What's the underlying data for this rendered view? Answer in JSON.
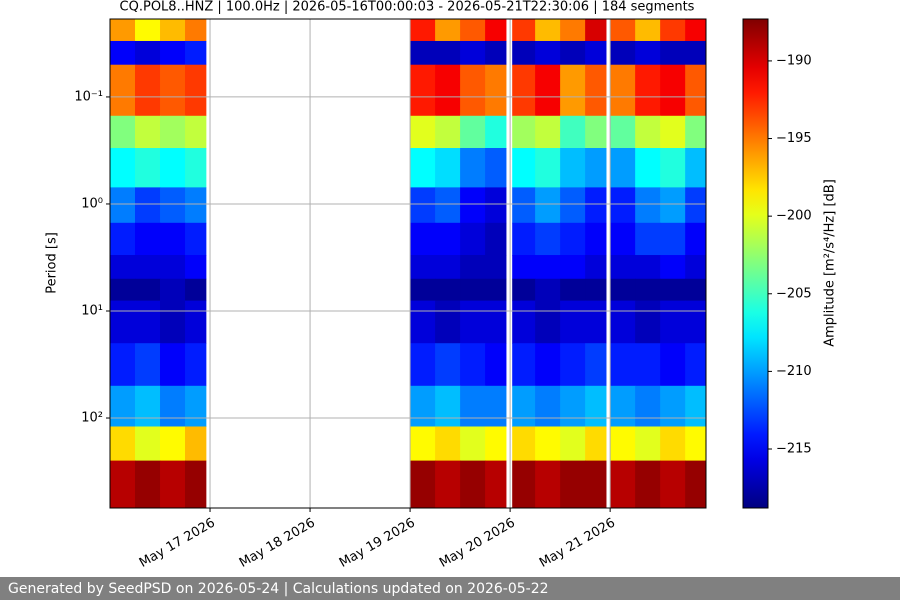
{
  "chart_data": {
    "type": "heatmap",
    "title": "CQ.POL8..HNZ | 100.0Hz | 2026-05-16T00:00:03 - 2026-05-21T22:30:06 | 184 segments",
    "ylabel": "Period [s]",
    "yscale": "log",
    "y_inverted": true,
    "grid": true,
    "xlim": [
      "2026-05-16T00:00",
      "2026-05-21T23:00"
    ],
    "xticks": [
      {
        "value": "2026-05-17T00:00",
        "label": "May 17 2026"
      },
      {
        "value": "2026-05-18T00:00",
        "label": "May 18 2026"
      },
      {
        "value": "2026-05-19T00:00",
        "label": "May 19 2026"
      },
      {
        "value": "2026-05-20T00:00",
        "label": "May 20 2026"
      },
      {
        "value": "2026-05-21T00:00",
        "label": "May 21 2026"
      }
    ],
    "ylim": [
      0.0187,
      693
    ],
    "yticks": [
      {
        "value": 0.1,
        "label": "10⁻¹"
      },
      {
        "value": 1,
        "label": "10⁰"
      },
      {
        "value": 10,
        "label": "10¹"
      },
      {
        "value": 100,
        "label": "10²"
      }
    ],
    "x_edges": [
      "2026-05-16T00:00",
      "2026-05-16T06:00",
      "2026-05-16T12:00",
      "2026-05-16T18:00",
      "2026-05-16T23:00",
      "2026-05-19T00:00",
      "2026-05-19T06:00",
      "2026-05-19T12:00",
      "2026-05-19T18:00",
      "2026-05-19T23:00",
      "2026-05-20T00:30",
      "2026-05-20T06:00",
      "2026-05-20T12:00",
      "2026-05-20T18:00",
      "2026-05-20T23:00",
      "2026-05-21T00:00",
      "2026-05-21T06:00",
      "2026-05-21T12:00",
      "2026-05-21T18:00",
      "2026-05-21T23:00"
    ],
    "y_edges": [
      0.0187,
      0.03,
      0.05,
      0.15,
      0.3,
      0.7,
      1.5,
      3,
      5,
      8,
      20,
      50,
      120,
      250,
      693
    ],
    "z": [
      [
        -196,
        -199,
        -197,
        -195,
        null,
        -192,
        -196,
        -194,
        -191,
        null,
        -193,
        -197,
        -195,
        -190,
        null,
        -194,
        -197,
        -193,
        -191
      ],
      [
        -215,
        -216,
        -215,
        -214,
        null,
        -217,
        -217,
        -216,
        -217,
        null,
        -217,
        -216,
        -217,
        -216,
        null,
        -217,
        -216,
        -217,
        -217
      ],
      [
        -195,
        -193,
        -194,
        -193,
        null,
        -192,
        -191,
        -194,
        -195,
        null,
        -193,
        -191,
        -196,
        -194,
        null,
        -195,
        -192,
        -191,
        -194
      ],
      [
        -203,
        -201,
        -202,
        -201,
        null,
        -200,
        -201,
        -204,
        -206,
        null,
        -202,
        -201,
        -205,
        -203,
        null,
        -204,
        -201,
        -200,
        -203
      ],
      [
        -207,
        -206,
        -207,
        -206,
        null,
        -207,
        -208,
        -211,
        -212,
        null,
        -207,
        -206,
        -209,
        -210,
        null,
        -210,
        -207,
        -206,
        -209
      ],
      [
        -211,
        -213,
        -212,
        -211,
        null,
        -213,
        -212,
        -215,
        -216,
        null,
        -212,
        -210,
        -212,
        -214,
        null,
        -214,
        -211,
        -210,
        -213
      ],
      [
        -214,
        -215,
        -215,
        -214,
        null,
        -215,
        -215,
        -216,
        -217,
        null,
        -214,
        -213,
        -214,
        -215,
        null,
        -215,
        -213,
        -213,
        -215
      ],
      [
        -216,
        -216,
        -216,
        -215,
        null,
        -216,
        -216,
        -217,
        -217,
        null,
        -215,
        -215,
        -215,
        -216,
        null,
        -216,
        -216,
        -215,
        -216
      ],
      [
        -218,
        -218,
        -217,
        -218,
        null,
        -218,
        -218,
        -218,
        -218,
        null,
        -218,
        -217,
        -218,
        -218,
        null,
        -218,
        -218,
        -218,
        -218
      ],
      [
        -216,
        -216,
        -217,
        -216,
        null,
        -216,
        -217,
        -216,
        -216,
        null,
        -216,
        -217,
        -216,
        -216,
        null,
        -216,
        -217,
        -216,
        -216
      ],
      [
        -214,
        -213,
        -215,
        -214,
        null,
        -214,
        -213,
        -214,
        -215,
        null,
        -214,
        -215,
        -214,
        -213,
        null,
        -214,
        -214,
        -215,
        -214
      ],
      [
        -210,
        -209,
        -211,
        -210,
        null,
        -210,
        -209,
        -211,
        -211,
        null,
        -210,
        -211,
        -210,
        -209,
        null,
        -210,
        -211,
        -210,
        -209
      ],
      [
        -198,
        -200,
        -199,
        -197,
        null,
        -199,
        -198,
        -200,
        -199,
        null,
        -198,
        -199,
        -200,
        -198,
        null,
        -199,
        -200,
        -198,
        -199
      ],
      [
        -189,
        -188,
        -189,
        -188,
        null,
        -188,
        -189,
        -188,
        -189,
        null,
        -188,
        -189,
        -188,
        -188,
        null,
        -189,
        -188,
        -189,
        -188
      ]
    ],
    "colorbar": {
      "label": "Amplitude [m²/s⁴/Hz] [dB]",
      "colormap": "jet",
      "clim": [
        -218.8,
        -187.3
      ],
      "ticks": [
        {
          "value": -190,
          "label": "−190"
        },
        {
          "value": -195,
          "label": "−195"
        },
        {
          "value": -200,
          "label": "−200"
        },
        {
          "value": -205,
          "label": "−205"
        },
        {
          "value": -210,
          "label": "−210"
        },
        {
          "value": -215,
          "label": "−215"
        }
      ]
    }
  },
  "footer": "Generated by SeedPSD on 2026-05-24 | Calculations updated on 2026-05-22"
}
